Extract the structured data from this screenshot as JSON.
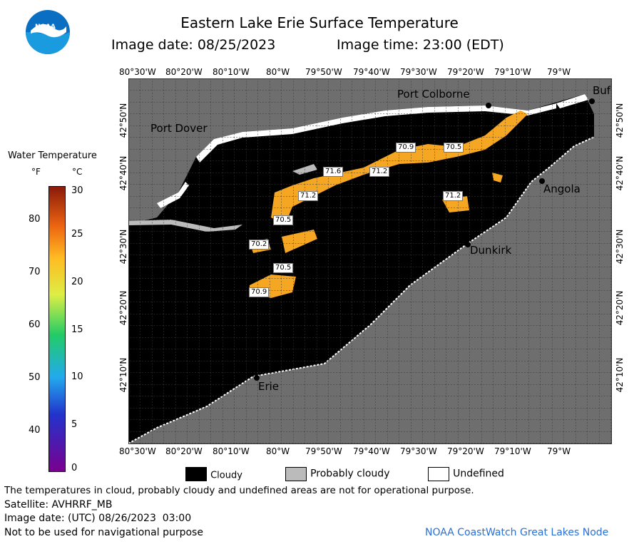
{
  "header": {
    "title": "Eastern Lake Erie Surface Temperature",
    "image_date": "Image date: 08/25/2023",
    "image_time": "Image time: 23:00 (EDT)",
    "logo_text": "NOAA"
  },
  "axes": {
    "lon_labels": [
      "80°30'W",
      "80°20'W",
      "80°10'W",
      "80°W",
      "79°50'W",
      "79°40'W",
      "79°30'W",
      "79°20'W",
      "79°10'W",
      "79°W"
    ],
    "lat_labels": [
      "42°50'N",
      "42°40'N",
      "42°30'N",
      "42°20'N",
      "42°10'N"
    ]
  },
  "colorbar": {
    "title": "Water Temperature",
    "f_unit": "°F",
    "c_unit": "°C",
    "f_ticks": [
      "80",
      "70",
      "60",
      "50",
      "40"
    ],
    "c_ticks": [
      "30",
      "25",
      "20",
      "15",
      "10",
      "5",
      "0"
    ]
  },
  "places": {
    "port_colborne": "Port Colborne",
    "port_dover": "Port Dover",
    "angola": "Angola",
    "dunkirk": "Dunkirk",
    "erie": "Erie",
    "buffalo": "Buf"
  },
  "temps": [
    "70.9",
    "70.5",
    "71.6",
    "71.2",
    "71.2",
    "71.2",
    "70.5",
    "70.2",
    "70.5",
    "70.9"
  ],
  "legend": {
    "cloudy": "Cloudy",
    "probably_cloudy": "Probably cloudy",
    "undefined": "Undefined",
    "colors": {
      "cloudy": "#000000",
      "probably_cloudy": "#bbbbbb",
      "undefined": "#ffffff",
      "land": "#6e6e6e",
      "warm": "#f5a623"
    }
  },
  "footer": {
    "disclaimer": "The temperatures in cloud, probably cloudy and undefined areas are not for operational purpose.",
    "satellite": "Satellite: AVHRRF_MB",
    "utc_date": "Image date: (UTC) 08/26/2023  03:00",
    "nav_warning": "Not to be used for navigational purpose",
    "credit": "NOAA CoastWatch Great Lakes Node"
  }
}
